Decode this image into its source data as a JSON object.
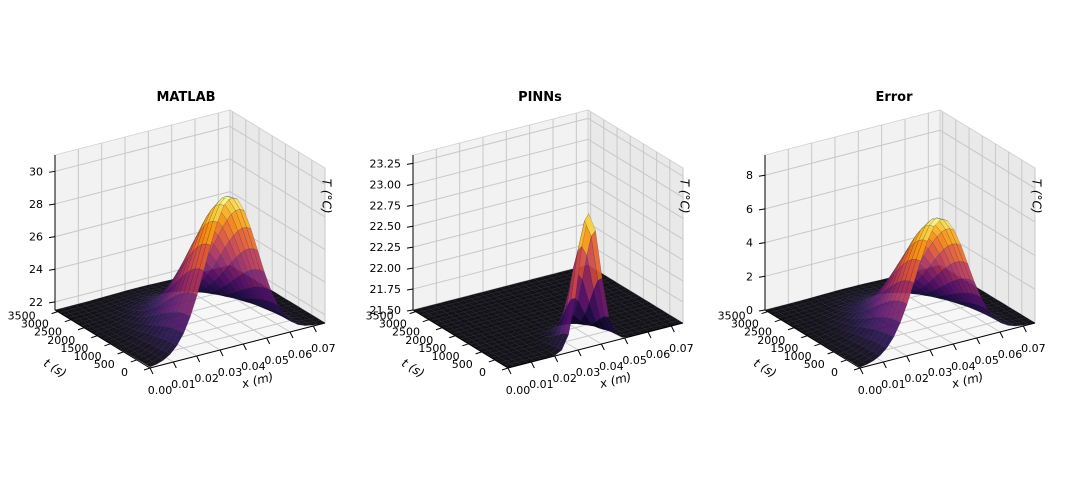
{
  "chart_data": [
    {
      "type": "surface3d",
      "title": "MATLAB",
      "xlabel": "x (m)",
      "ylabel": "t (s)",
      "zlabel": "T (°C)",
      "xticks": [
        "0.00",
        "0.01",
        "0.02",
        "0.03",
        "0.04",
        "0.05",
        "0.06",
        "0.07"
      ],
      "yticks": [
        "0",
        "500",
        "1000",
        "1500",
        "2000",
        "2500",
        "3000",
        "3500"
      ],
      "zticks": [
        "22",
        "24",
        "26",
        "28",
        "30"
      ],
      "xlim": [
        0,
        0.075
      ],
      "ylim": [
        0,
        3600
      ],
      "zlim": [
        21.5,
        31
      ],
      "surface": {
        "base": 21.5,
        "peak": 30.7,
        "peak_x": 0.035,
        "peak_t": 0,
        "sigma_x": 0.011,
        "sigma_t": 1150
      },
      "colormap": "inferno"
    },
    {
      "type": "surface3d",
      "title": "PINNs",
      "xlabel": "x (m)",
      "ylabel": "t (s)",
      "zlabel": "T (°C)",
      "xticks": [
        "0.00",
        "0.01",
        "0.02",
        "0.03",
        "0.04",
        "0.05",
        "0.06",
        "0.07"
      ],
      "yticks": [
        "0",
        "500",
        "1000",
        "1500",
        "2000",
        "2500",
        "3000",
        "3500"
      ],
      "zticks": [
        "21.50",
        "21.75",
        "22.00",
        "22.25",
        "22.50",
        "22.75",
        "23.00",
        "23.25"
      ],
      "xlim": [
        0,
        0.075
      ],
      "ylim": [
        0,
        3600
      ],
      "zlim": [
        21.5,
        23.35
      ],
      "surface": {
        "base": 21.5,
        "peak": 23.1,
        "peak_x": 0.035,
        "peak_t": 0,
        "sigma_x": 0.0045,
        "sigma_t": 420
      },
      "colormap": "inferno"
    },
    {
      "type": "surface3d",
      "title": "Error",
      "xlabel": "x (m)",
      "ylabel": "t (s)",
      "zlabel": "T (°C)",
      "xticks": [
        "0.00",
        "0.01",
        "0.02",
        "0.03",
        "0.04",
        "0.05",
        "0.06",
        "0.07"
      ],
      "yticks": [
        "0",
        "500",
        "1000",
        "1500",
        "2000",
        "2500",
        "3000",
        "3500"
      ],
      "zticks": [
        "0",
        "2",
        "4",
        "6",
        "8"
      ],
      "xlim": [
        0,
        0.075
      ],
      "ylim": [
        0,
        3600
      ],
      "zlim": [
        0,
        9.2
      ],
      "surface": {
        "base": 0,
        "peak": 7.6,
        "peak_x": 0.035,
        "peak_t": 0,
        "sigma_x": 0.011,
        "sigma_t": 1150
      },
      "colormap": "inferno"
    }
  ]
}
